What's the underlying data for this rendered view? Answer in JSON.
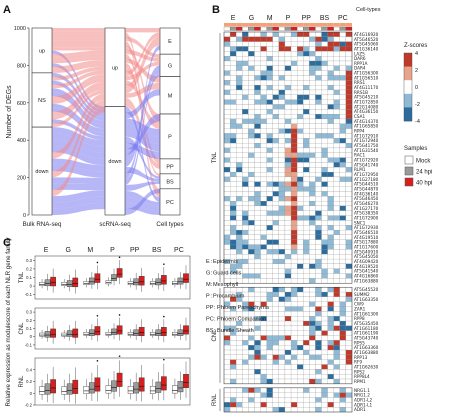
{
  "panels": {
    "a": {
      "label": "A",
      "ylabel": "Number of DEGs",
      "yticks": [
        0,
        200,
        400,
        600,
        800,
        1000
      ],
      "ymax": 1000,
      "columns": [
        {
          "label": "Bulk RNA-seq",
          "boxes": [
            {
              "name": "up",
              "from": 760,
              "to": 1000
            },
            {
              "name": "NS",
              "from": 470,
              "to": 760
            },
            {
              "name": "down",
              "from": 0,
              "to": 470
            }
          ]
        },
        {
          "label": "scRNA-seq",
          "boxes": [
            {
              "name": "up",
              "from": 580,
              "to": 1000
            },
            {
              "name": "down",
              "from": 0,
              "to": 580
            }
          ]
        },
        {
          "label": "Cell types",
          "boxes": [
            {
              "name": "E",
              "from": 860,
              "to": 1000
            },
            {
              "name": "G",
              "from": 740,
              "to": 860
            },
            {
              "name": "M",
              "from": 540,
              "to": 740
            },
            {
              "name": "P",
              "from": 300,
              "to": 540
            },
            {
              "name": "PP",
              "from": 220,
              "to": 300
            },
            {
              "name": "BS",
              "from": 140,
              "to": 220
            },
            {
              "name": "PC",
              "from": 0,
              "to": 140
            }
          ]
        }
      ],
      "colors": {
        "up": "#f28b8b",
        "down": "#7b7bf0"
      }
    },
    "b": {
      "label": "B",
      "groups": [
        "E",
        "G",
        "M",
        "P",
        "PP",
        "BS",
        "PC"
      ],
      "celltypes_label": "Cell-types",
      "sections": [
        {
          "name": "TNL",
          "genes": [
            "AT4G16920",
            "AT5G46520",
            "AT5G45060",
            "AT1G36140",
            "LAZ5",
            "DAR6",
            "RPP1A",
            "DAR4",
            "AT1G56300",
            "AT1G56510",
            "RRS1",
            "AT4G11170",
            "RRS1B",
            "AT5G45210",
            "AT1G72850",
            "AT2G14080",
            "AT4G36150",
            "CSA1",
            "AT4G14370",
            "AT1G65850",
            "RPP4",
            "AT1G72910",
            "AT1G72940",
            "AT5G41750",
            "AT1G31540",
            "RAC1",
            "AT1G72920",
            "AT5G41740",
            "RLM1",
            "AT1G72950",
            "AT1G27180",
            "AT5G44510",
            "AT5G44870",
            "AT4G36140",
            "AT5G46450",
            "AT5G46270",
            "AT1G27170",
            "AT5G38350",
            "AT1G72900",
            "SNC1",
            "AT1G72930",
            "AT5G46510",
            "AT4G19510",
            "AT5G17880",
            "AT1G17600",
            "AT5G40910",
            "AT5G45050",
            "AT4G09420",
            "AT4G19520",
            "AT5G41540",
            "AT4G16860",
            "AT1G63880"
          ]
        },
        {
          "name": "CNL",
          "genes": [
            "AT5G45520",
            "SUMM2",
            "AT1G63350",
            "CW9",
            "ZAR1",
            "AT1G61300",
            "RPP8",
            "AT5G35450",
            "AT1G61180",
            "AT1G61190",
            "AT5G43740",
            "RPS5",
            "AT1G63360",
            "AT1G63880",
            "RPP13",
            "RF9",
            "AT1G62630",
            "RPS2",
            "RPP8L4",
            "RPM1"
          ]
        },
        {
          "name": "RNL",
          "genes": [
            "NRG1.1",
            "NRG1.2",
            "ADR1-L2",
            "ADR1-L1",
            "ADR1"
          ]
        }
      ],
      "colorbar": {
        "title": "Z-scores",
        "ticks": [
          4,
          2,
          0,
          -2,
          -4
        ],
        "min": -4,
        "max": 4
      },
      "samples_legend": {
        "title": "Samples",
        "items": [
          {
            "label": "Mock",
            "color": "#ffffff"
          },
          {
            "label": "24 hpi",
            "color": "#9a9a9a"
          },
          {
            "label": "40 hpi",
            "color": "#d62020"
          }
        ]
      }
    },
    "c": {
      "label": "C",
      "ylabel": "Relative expression as modulescore of each NLR gene family",
      "groups": [
        "E",
        "G",
        "M",
        "P",
        "PP",
        "BS",
        "PC"
      ],
      "facets": [
        {
          "name": "TNL",
          "ymin": -0.15,
          "ymax": 0.35,
          "yticks": [
            -0.1,
            0.0,
            0.1,
            0.2,
            0.3
          ],
          "medians": [
            [
              0.02,
              0.03,
              0.04
            ],
            [
              0.02,
              0.02,
              0.03
            ],
            [
              0.03,
              0.05,
              0.08
            ],
            [
              0.04,
              0.09,
              0.14
            ],
            [
              0.03,
              0.04,
              0.05
            ],
            [
              0.03,
              0.04,
              0.06
            ],
            [
              0.03,
              0.05,
              0.08
            ]
          ]
        },
        {
          "name": "CNL",
          "ymin": -0.15,
          "ymax": 0.35,
          "yticks": [
            -0.1,
            0.0,
            0.1,
            0.2,
            0.3
          ],
          "medians": [
            [
              0.02,
              0.02,
              0.03
            ],
            [
              0.02,
              0.03,
              0.03
            ],
            [
              0.03,
              0.04,
              0.06
            ],
            [
              0.03,
              0.05,
              0.07
            ],
            [
              0.03,
              0.04,
              0.05
            ],
            [
              0.03,
              0.04,
              0.05
            ],
            [
              0.03,
              0.04,
              0.07
            ]
          ]
        },
        {
          "name": "RNL",
          "ymin": -0.2,
          "ymax": 0.6,
          "yticks": [
            -0.2,
            0.0,
            0.2,
            0.4
          ],
          "medians": [
            [
              0.03,
              0.05,
              0.09
            ],
            [
              0.03,
              0.05,
              0.08
            ],
            [
              0.04,
              0.07,
              0.12
            ],
            [
              0.05,
              0.1,
              0.2
            ],
            [
              0.04,
              0.07,
              0.12
            ],
            [
              0.04,
              0.08,
              0.14
            ],
            [
              0.05,
              0.09,
              0.18
            ]
          ]
        }
      ],
      "legend": [
        {
          "abbr": "E",
          "full": "Epidermis"
        },
        {
          "abbr": "G",
          "full": "Guard cells"
        },
        {
          "abbr": "M",
          "full": "Mesophyll"
        },
        {
          "abbr": "P",
          "full": "Procambium"
        },
        {
          "abbr": "PP",
          "full": "Phloem Parenchyma"
        },
        {
          "abbr": "PC",
          "full": "Phloem Companion"
        },
        {
          "abbr": "BS",
          "full": "Bundle Sheath"
        }
      ]
    }
  }
}
